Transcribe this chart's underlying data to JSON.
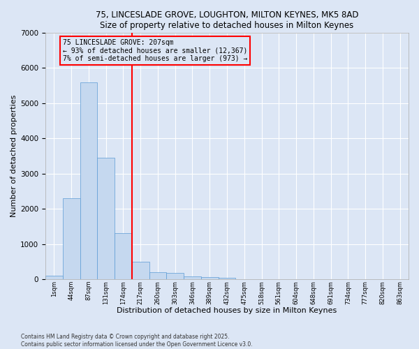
{
  "title1": "75, LINCESLADE GROVE, LOUGHTON, MILTON KEYNES, MK5 8AD",
  "title2": "Size of property relative to detached houses in Milton Keynes",
  "xlabel": "Distribution of detached houses by size in Milton Keynes",
  "ylabel": "Number of detached properties",
  "categories": [
    "1sqm",
    "44sqm",
    "87sqm",
    "131sqm",
    "174sqm",
    "217sqm",
    "260sqm",
    "303sqm",
    "346sqm",
    "389sqm",
    "432sqm",
    "475sqm",
    "518sqm",
    "561sqm",
    "604sqm",
    "648sqm",
    "691sqm",
    "734sqm",
    "777sqm",
    "820sqm",
    "863sqm"
  ],
  "values": [
    100,
    2300,
    5600,
    3450,
    1320,
    500,
    200,
    190,
    90,
    70,
    45,
    18,
    8,
    4,
    3,
    2,
    1,
    1,
    1,
    1,
    1
  ],
  "bar_color": "#c5d8ef",
  "bar_edge_color": "#5b9bd5",
  "vline_color": "red",
  "annotation_text": "75 LINCESLADE GROVE: 207sqm\n← 93% of detached houses are smaller (12,367)\n7% of semi-detached houses are larger (973) →",
  "annotation_box_color": "red",
  "bg_color": "#dce6f5",
  "grid_color": "#ffffff",
  "ylim": [
    0,
    7000
  ],
  "yticks": [
    0,
    1000,
    2000,
    3000,
    4000,
    5000,
    6000,
    7000
  ],
  "footer1": "Contains HM Land Registry data © Crown copyright and database right 2025.",
  "footer2": "Contains public sector information licensed under the Open Government Licence v3.0.",
  "vline_index": 4.5
}
